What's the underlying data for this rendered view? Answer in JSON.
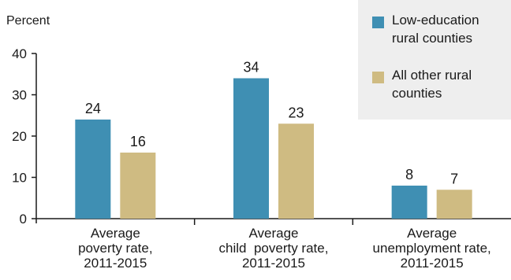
{
  "chart_data": {
    "type": "bar",
    "ylabel": "Percent",
    "ylim": [
      0,
      40
    ],
    "yticks": [
      0,
      10,
      20,
      30,
      40
    ],
    "categories": [
      "Average poverty rate, 2011-2015",
      "Average child  poverty rate, 2011-2015",
      "Average unemployment rate, 2011-2015"
    ],
    "category_lines": [
      [
        "Average",
        "poverty rate,",
        "2011-2015"
      ],
      [
        "Average",
        "child  poverty rate,",
        "2011-2015"
      ],
      [
        "Average",
        "unemployment rate,",
        "2011-2015"
      ]
    ],
    "series": [
      {
        "name": "Low-education rural counties",
        "values": [
          24,
          34,
          8
        ],
        "color": "#3f8fb3"
      },
      {
        "name": "All other rural counties",
        "values": [
          16,
          23,
          7
        ],
        "color": "#cfbb82"
      }
    ],
    "data_labels": [
      [
        "24",
        "34",
        "8"
      ],
      [
        "16",
        "23",
        "7"
      ]
    ],
    "legend": {
      "position": "top-right",
      "items": [
        {
          "lines": [
            "Low-education",
            "rural counties"
          ],
          "color": "#3f8fb3"
        },
        {
          "lines": [
            "All other rural",
            "counties"
          ],
          "color": "#cfbb82"
        }
      ]
    },
    "grid": false
  }
}
